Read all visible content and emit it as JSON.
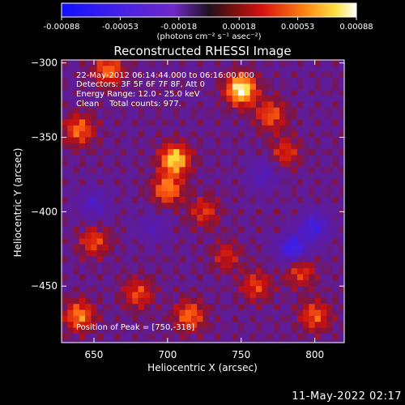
{
  "chart_data": {
    "type": "heatmap",
    "title": "Reconstructed RHESSI Image",
    "xlabel": "Heliocentric X (arcsec)",
    "ylabel": "Heliocentric Y (arcsec)",
    "xlim": [
      628,
      820
    ],
    "ylim": [
      -488,
      -298
    ],
    "x_ticks": [
      650,
      700,
      750,
      800
    ],
    "y_ticks": [
      -300,
      -350,
      -400,
      -450
    ],
    "colorbar": {
      "ticks": [
        -0.00088,
        -0.00053,
        -0.00018,
        0.00018,
        0.00053,
        0.00088
      ],
      "tick_labels": [
        "-0.00088",
        "-0.00053",
        "-0.00018",
        "0.00018",
        "0.00053",
        "0.00088"
      ],
      "unit_label": "(photons cm⁻² s⁻¹ asec⁻²)",
      "range": [
        -0.00088,
        0.00088
      ]
    },
    "annotations": [
      "22-May-2012 06:14:44.000 to 06:16:00.000",
      "Detectors: 3F 5F 6F 7F 8F, Att 0",
      "Energy Range: 12.0 - 25.0 keV",
      "Clean    Total counts: 977."
    ],
    "peak_label": "Position of Peak = [750,-318]",
    "peak": [
      750,
      -318
    ],
    "hot_spots": [
      {
        "x": 750,
        "y": -318,
        "value": 0.00088
      },
      {
        "x": 705,
        "y": -365,
        "value": 0.00075
      },
      {
        "x": 700,
        "y": -385,
        "value": 0.00055
      },
      {
        "x": 660,
        "y": -305,
        "value": 0.0005
      },
      {
        "x": 770,
        "y": -335,
        "value": 0.00045
      },
      {
        "x": 640,
        "y": -345,
        "value": 0.0005
      },
      {
        "x": 640,
        "y": -470,
        "value": 0.00055
      },
      {
        "x": 715,
        "y": -470,
        "value": 0.0005
      },
      {
        "x": 800,
        "y": -470,
        "value": 0.00045
      },
      {
        "x": 790,
        "y": -440,
        "value": 0.0004
      },
      {
        "x": 650,
        "y": -420,
        "value": 0.0004
      },
      {
        "x": 725,
        "y": -400,
        "value": 0.00035
      },
      {
        "x": 780,
        "y": -360,
        "value": 0.00035
      },
      {
        "x": 680,
        "y": -455,
        "value": 0.0004
      },
      {
        "x": 760,
        "y": -450,
        "value": 0.00038
      },
      {
        "x": 740,
        "y": -430,
        "value": 0.0003
      }
    ],
    "cold_spots": [
      {
        "x": 785,
        "y": -425,
        "value": -0.0006
      },
      {
        "x": 800,
        "y": -410,
        "value": -0.0005
      },
      {
        "x": 650,
        "y": -395,
        "value": -0.00035
      },
      {
        "x": 765,
        "y": -375,
        "value": -0.0003
      },
      {
        "x": 690,
        "y": -410,
        "value": -0.00025
      }
    ]
  },
  "footer_date": "11-May-2022 02:17"
}
